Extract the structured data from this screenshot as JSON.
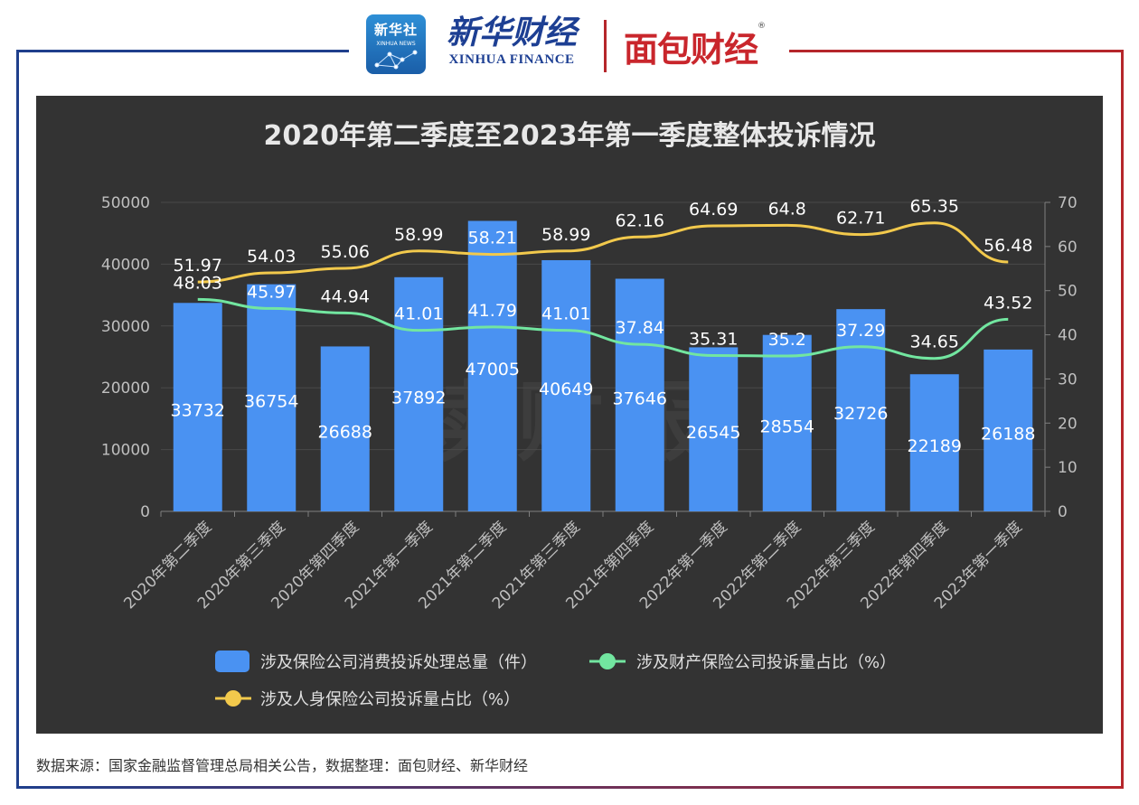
{
  "header": {
    "xinhua_badge_cn": "新华社",
    "xinhua_badge_en": "XINHUA NEWS",
    "brand_cn": "新华财经",
    "brand_en": "XINHUA FINANCE",
    "partner_brand": "面包财经",
    "registered_mark": "®"
  },
  "watermark": "读财报",
  "chart_data": {
    "type": "bar",
    "title": "2020年第二季度至2023年第一季度整体投诉情况",
    "categories": [
      "2020年第二季度",
      "2020年第三季度",
      "2020年第四季度",
      "2021年第一季度",
      "2021年第二季度",
      "2021年第三季度",
      "2021年第四季度",
      "2022年第一季度",
      "2022年第二季度",
      "2022年第三季度",
      "2022年第四季度",
      "2023年第一季度"
    ],
    "series": [
      {
        "name": "涉及保险公司消费投诉处理总量（件）",
        "type": "bar",
        "axis": "left",
        "color": "#4a92f2",
        "values": [
          33732,
          36754,
          26688,
          37892,
          47005,
          40649,
          37646,
          26545,
          28554,
          32726,
          22189,
          26188
        ]
      },
      {
        "name": "涉及财产保险公司投诉量占比（%）",
        "type": "line",
        "axis": "right",
        "color": "#72e6a0",
        "values": [
          48.03,
          45.97,
          44.94,
          41.01,
          41.79,
          41.01,
          37.84,
          35.31,
          35.2,
          37.29,
          34.65,
          43.52
        ]
      },
      {
        "name": "涉及人身保险公司投诉量占比（%）",
        "type": "line",
        "axis": "right",
        "color": "#f2c94c",
        "values": [
          51.97,
          54.03,
          55.06,
          58.99,
          58.21,
          58.99,
          62.16,
          64.69,
          64.8,
          62.71,
          65.35,
          56.48
        ]
      }
    ],
    "y_left": {
      "min": 0,
      "max": 50000,
      "ticks": [
        "0",
        "10000",
        "20000",
        "30000",
        "40000",
        "50000"
      ]
    },
    "y_right": {
      "min": 0,
      "max": 70,
      "ticks": [
        "0",
        "10",
        "20",
        "30",
        "40",
        "50",
        "60",
        "70"
      ]
    },
    "grid": true,
    "legend_position": "bottom-left"
  },
  "footer": {
    "source": "数据来源：国家金融监督管理总局相关公告，数据整理：面包财经、新华财经"
  }
}
